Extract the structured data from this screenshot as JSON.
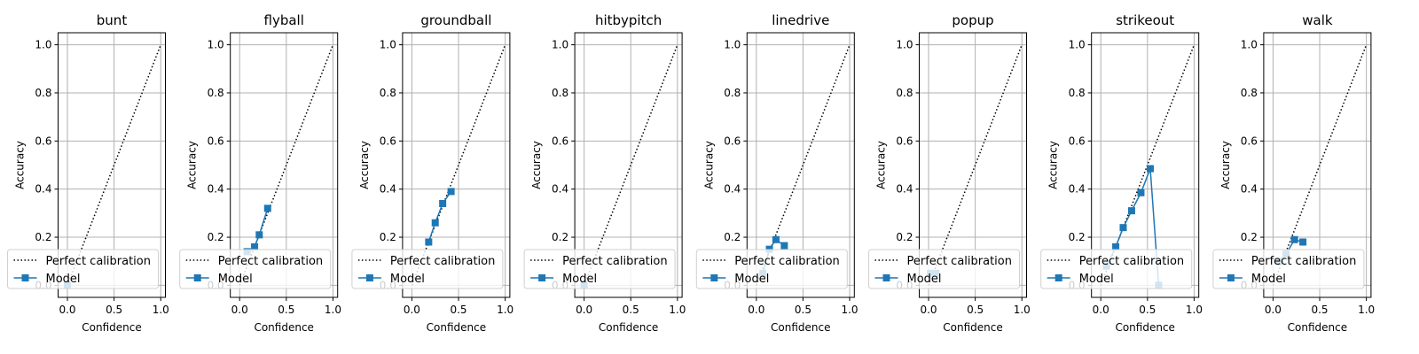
{
  "chart_data": [
    {
      "type": "line",
      "title": "bunt",
      "xlabel": "Confidence",
      "ylabel": "Accuracy",
      "xlim": [
        -0.1,
        1.05
      ],
      "ylim": [
        -0.05,
        1.05
      ],
      "xticks": [
        "0.0",
        "0.5",
        "1.0"
      ],
      "yticks": [
        "0.0",
        "0.2",
        "0.4",
        "0.6",
        "0.8",
        "1.0"
      ],
      "grid": true,
      "legend": "lower-left",
      "series": [
        {
          "name": "Perfect calibration",
          "x": [
            0,
            1
          ],
          "y": [
            0,
            1
          ],
          "style": "dotted",
          "color": "#000000"
        },
        {
          "name": "Model",
          "x": [
            0.0
          ],
          "y": [
            0.0
          ],
          "marker": "square",
          "color": "#1f77b4"
        }
      ]
    },
    {
      "type": "line",
      "title": "flyball",
      "xlabel": "Confidence",
      "ylabel": "Accuracy",
      "xlim": [
        -0.1,
        1.05
      ],
      "ylim": [
        -0.05,
        1.05
      ],
      "xticks": [
        "0.0",
        "0.5",
        "1.0"
      ],
      "yticks": [
        "0.0",
        "0.2",
        "0.4",
        "0.6",
        "0.8",
        "1.0"
      ],
      "grid": true,
      "legend": "lower-left",
      "series": [
        {
          "name": "Perfect calibration",
          "x": [
            0,
            1
          ],
          "y": [
            0,
            1
          ],
          "style": "dotted",
          "color": "#000000"
        },
        {
          "name": "Model",
          "x": [
            0.08,
            0.16,
            0.21,
            0.3
          ],
          "y": [
            0.14,
            0.16,
            0.21,
            0.32
          ],
          "marker": "square",
          "color": "#1f77b4"
        }
      ]
    },
    {
      "type": "line",
      "title": "groundball",
      "xlabel": "Confidence",
      "ylabel": "Accuracy",
      "xlim": [
        -0.1,
        1.05
      ],
      "ylim": [
        -0.05,
        1.05
      ],
      "xticks": [
        "0.0",
        "0.5",
        "1.0"
      ],
      "yticks": [
        "0.0",
        "0.2",
        "0.4",
        "0.6",
        "0.8",
        "1.0"
      ],
      "grid": true,
      "legend": "lower-left",
      "series": [
        {
          "name": "Perfect calibration",
          "x": [
            0,
            1
          ],
          "y": [
            0,
            1
          ],
          "style": "dotted",
          "color": "#000000"
        },
        {
          "name": "Model",
          "x": [
            0.18,
            0.25,
            0.33,
            0.42
          ],
          "y": [
            0.18,
            0.26,
            0.34,
            0.39
          ],
          "marker": "square",
          "color": "#1f77b4"
        }
      ]
    },
    {
      "type": "line",
      "title": "hitbypitch",
      "xlabel": "Confidence",
      "ylabel": "Accuracy",
      "xlim": [
        -0.1,
        1.05
      ],
      "ylim": [
        -0.05,
        1.05
      ],
      "xticks": [
        "0.0",
        "0.5",
        "1.0"
      ],
      "yticks": [
        "0.0",
        "0.2",
        "0.4",
        "0.6",
        "0.8",
        "1.0"
      ],
      "grid": true,
      "legend": "lower-left",
      "series": [
        {
          "name": "Perfect calibration",
          "x": [
            0,
            1
          ],
          "y": [
            0,
            1
          ],
          "style": "dotted",
          "color": "#000000"
        },
        {
          "name": "Model",
          "x": [
            0.0
          ],
          "y": [
            0.0
          ],
          "marker": "square",
          "color": "#1f77b4"
        }
      ]
    },
    {
      "type": "line",
      "title": "linedrive",
      "xlabel": "Confidence",
      "ylabel": "Accuracy",
      "xlim": [
        -0.1,
        1.05
      ],
      "ylim": [
        -0.05,
        1.05
      ],
      "xticks": [
        "0.0",
        "0.5",
        "1.0"
      ],
      "yticks": [
        "0.0",
        "0.2",
        "0.4",
        "0.6",
        "0.8",
        "1.0"
      ],
      "grid": true,
      "legend": "lower-left",
      "series": [
        {
          "name": "Perfect calibration",
          "x": [
            0,
            1
          ],
          "y": [
            0,
            1
          ],
          "style": "dotted",
          "color": "#000000"
        },
        {
          "name": "Model",
          "x": [
            0.07,
            0.14,
            0.21,
            0.3
          ],
          "y": [
            0.05,
            0.15,
            0.19,
            0.165
          ],
          "marker": "square",
          "color": "#1f77b4"
        }
      ]
    },
    {
      "type": "line",
      "title": "popup",
      "xlabel": "Confidence",
      "ylabel": "Accuracy",
      "xlim": [
        -0.1,
        1.05
      ],
      "ylim": [
        -0.05,
        1.05
      ],
      "xticks": [
        "0.0",
        "0.5",
        "1.0"
      ],
      "yticks": [
        "0.0",
        "0.2",
        "0.4",
        "0.6",
        "0.8",
        "1.0"
      ],
      "grid": true,
      "legend": "lower-left",
      "series": [
        {
          "name": "Perfect calibration",
          "x": [
            0,
            1
          ],
          "y": [
            0,
            1
          ],
          "style": "dotted",
          "color": "#000000"
        },
        {
          "name": "Model",
          "x": [
            0.02,
            0.08
          ],
          "y": [
            0.05,
            0.05
          ],
          "marker": "square",
          "color": "#1f77b4"
        }
      ]
    },
    {
      "type": "line",
      "title": "strikeout",
      "xlabel": "Confidence",
      "ylabel": "Accuracy",
      "xlim": [
        -0.1,
        1.05
      ],
      "ylim": [
        -0.05,
        1.05
      ],
      "xticks": [
        "0.0",
        "0.5",
        "1.0"
      ],
      "yticks": [
        "0.0",
        "0.2",
        "0.4",
        "0.6",
        "0.8",
        "1.0"
      ],
      "grid": true,
      "legend": "lower-left",
      "series": [
        {
          "name": "Perfect calibration",
          "x": [
            0,
            1
          ],
          "y": [
            0,
            1
          ],
          "style": "dotted",
          "color": "#000000"
        },
        {
          "name": "Model",
          "x": [
            0.06,
            0.16,
            0.24,
            0.33,
            0.43,
            0.53,
            0.62
          ],
          "y": [
            0.08,
            0.16,
            0.24,
            0.31,
            0.385,
            0.485,
            0.0
          ],
          "marker": "square",
          "color": "#1f77b4"
        }
      ]
    },
    {
      "type": "line",
      "title": "walk",
      "xlabel": "Confidence",
      "ylabel": "Accuracy",
      "xlim": [
        -0.1,
        1.05
      ],
      "ylim": [
        -0.05,
        1.05
      ],
      "xticks": [
        "0.0",
        "0.5",
        "1.0"
      ],
      "yticks": [
        "0.0",
        "0.2",
        "0.4",
        "0.6",
        "0.8",
        "1.0"
      ],
      "grid": true,
      "legend": "lower-left",
      "series": [
        {
          "name": "Perfect calibration",
          "x": [
            0,
            1
          ],
          "y": [
            0,
            1
          ],
          "style": "dotted",
          "color": "#000000"
        },
        {
          "name": "Model",
          "x": [
            0.06,
            0.14,
            0.23,
            0.32
          ],
          "y": [
            0.1,
            0.13,
            0.19,
            0.18
          ],
          "marker": "square",
          "color": "#1f77b4"
        }
      ]
    }
  ]
}
